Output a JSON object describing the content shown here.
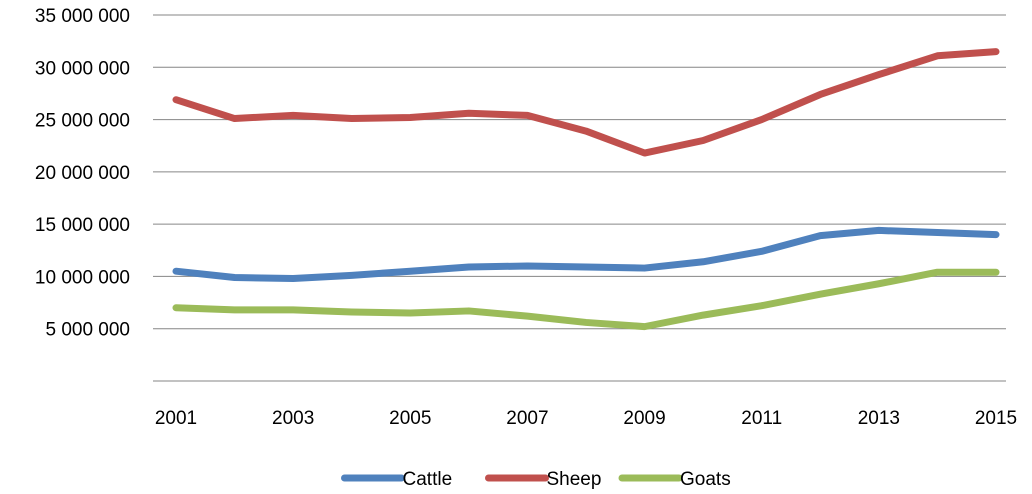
{
  "chart_data": {
    "type": "line",
    "title": "",
    "xlabel": "",
    "ylabel": "",
    "x": [
      2001,
      2002,
      2003,
      2004,
      2005,
      2006,
      2007,
      2008,
      2009,
      2010,
      2011,
      2012,
      2013,
      2014,
      2015
    ],
    "x_tick_labels": [
      "2001",
      "2003",
      "2005",
      "2007",
      "2009",
      "2011",
      "2013",
      "2015"
    ],
    "y_tick_labels": [
      "5 000 000",
      "10 000 000",
      "15 000 000",
      "20 000 000",
      "25 000 000",
      "30 000 000",
      "35 000 000"
    ],
    "ylim": [
      0,
      35000000
    ],
    "grid": "horizontal",
    "legend_position": "bottom",
    "series": [
      {
        "name": "Cattle",
        "color": "#4F81BD",
        "values": [
          10500000,
          9900000,
          9800000,
          10100000,
          10500000,
          10900000,
          11000000,
          10900000,
          10800000,
          11400000,
          12400000,
          13900000,
          14400000,
          14200000,
          14000000
        ]
      },
      {
        "name": "Sheep",
        "color": "#C0504D",
        "values": [
          26900000,
          25100000,
          25400000,
          25100000,
          25200000,
          25600000,
          25400000,
          23900000,
          21800000,
          23000000,
          25000000,
          27400000,
          29300000,
          31100000,
          31500000
        ]
      },
      {
        "name": "Goats",
        "color": "#9BBB59",
        "values": [
          7000000,
          6800000,
          6800000,
          6600000,
          6500000,
          6700000,
          6200000,
          5600000,
          5200000,
          6300000,
          7200000,
          8300000,
          9300000,
          10400000,
          10400000
        ]
      }
    ]
  }
}
